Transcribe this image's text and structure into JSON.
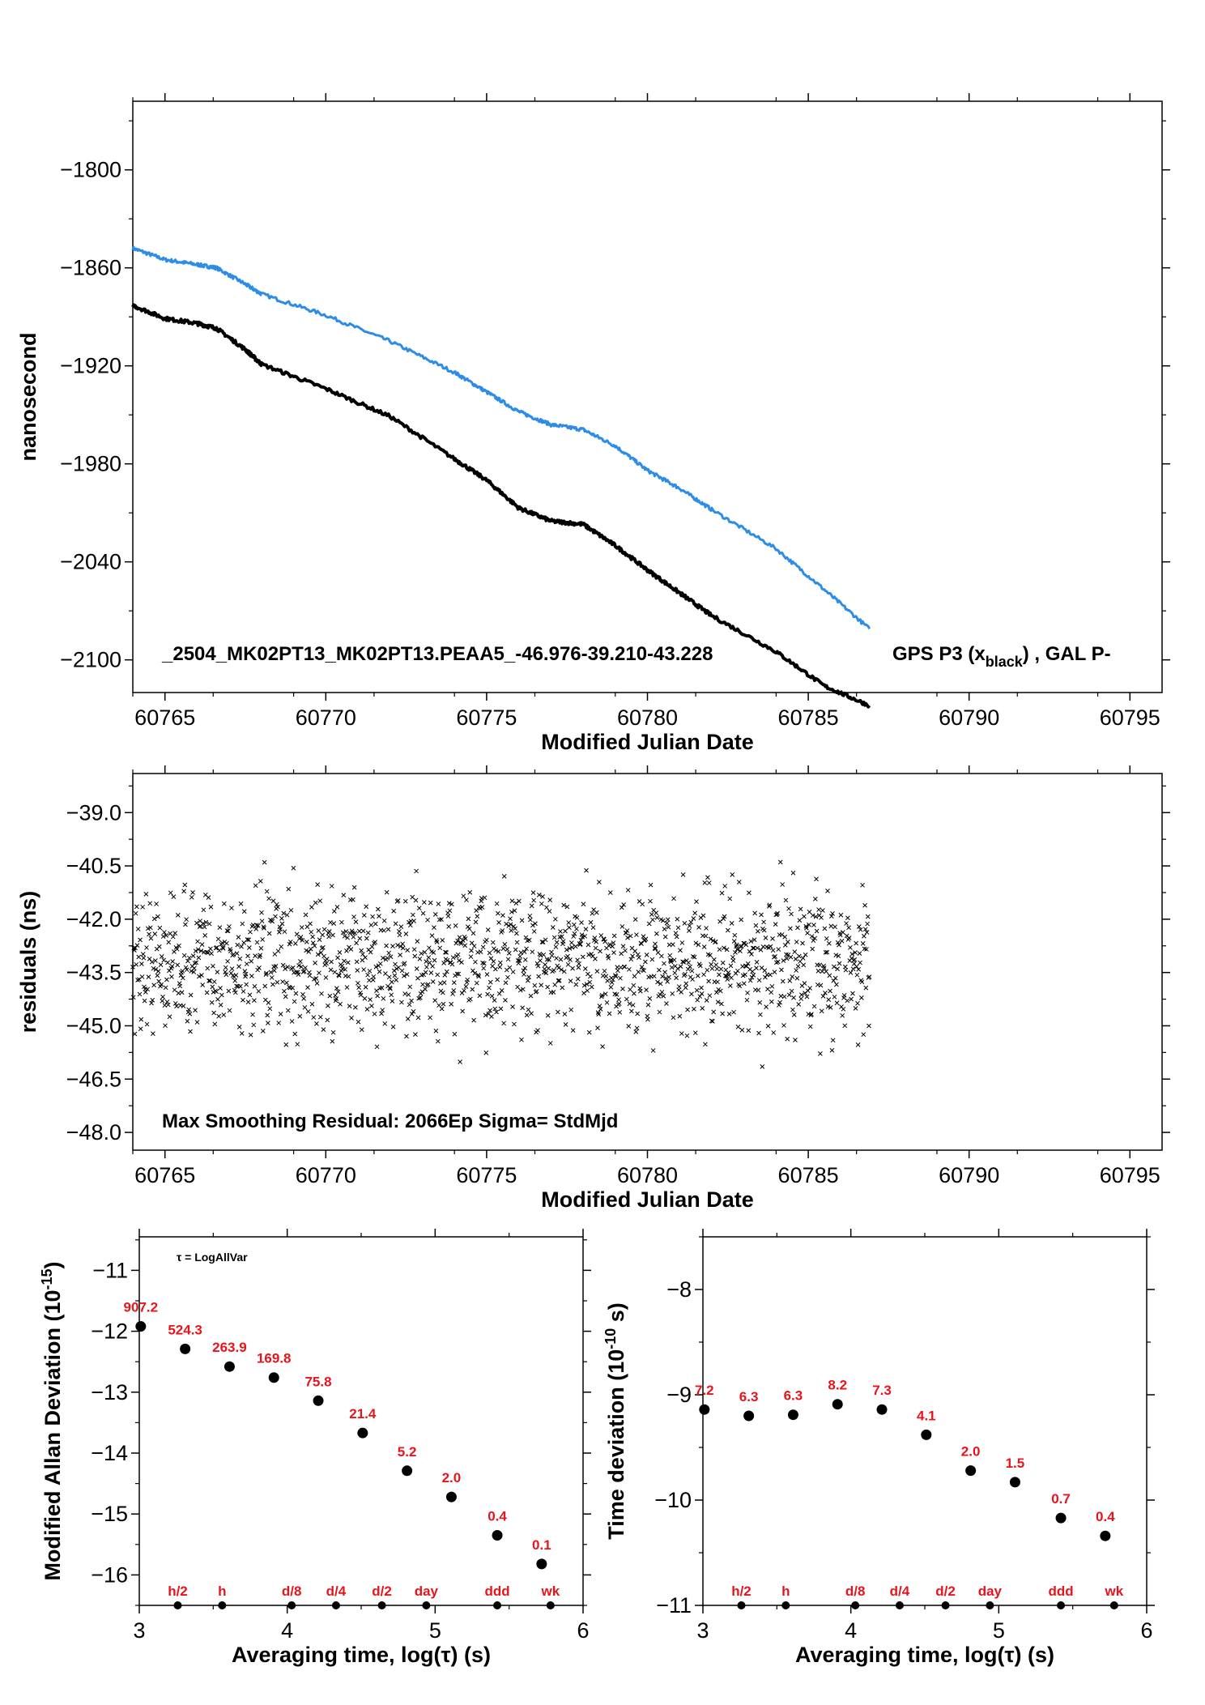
{
  "chart_data": [
    {
      "type": "line",
      "xlabel": "Modified Julian Date",
      "ylabel": "nanosecond",
      "xlim": [
        60764,
        60796
      ],
      "ylim": [
        -2120,
        -1758
      ],
      "xticks": [
        60765,
        60770,
        60775,
        60780,
        60785,
        60790,
        60795
      ],
      "yticks": [
        -1800,
        -1860,
        -1920,
        -1980,
        -2040,
        -2100
      ],
      "annotation": "_2504_MK02PT13_MK02PT13.PEAA5_-46.976-39.210-43.228",
      "legend_text": "GPS P3 (x",
      "legend_sub": "black",
      "legend_tail": ") ,  GAL P-",
      "series": [
        {
          "name": "GAL",
          "color": "#2d8de6",
          "x": [
            60764,
            60765,
            60766,
            60766.6,
            60767.5,
            60768,
            60770,
            60772,
            60774,
            60775,
            60776,
            60777,
            60778,
            60779,
            60780,
            60781,
            60782,
            60784,
            60785.5,
            60786.9
          ],
          "y": [
            -1848,
            -1855,
            -1858,
            -1860,
            -1870,
            -1876,
            -1889,
            -1905,
            -1924,
            -1936,
            -1948,
            -1956,
            -1959,
            -1969,
            -1984,
            -1995,
            -2008,
            -2032,
            -2057,
            -2081
          ]
        },
        {
          "name": "GPS",
          "color": "#000000",
          "x": [
            60764,
            60765,
            60766,
            60766.6,
            60767.5,
            60768,
            60770,
            60772,
            60774,
            60775,
            60776,
            60777,
            60778,
            60779,
            60780,
            60781,
            60782,
            60784,
            60785.5,
            60786.9
          ],
          "y": [
            -1883,
            -1891,
            -1894,
            -1897,
            -1910,
            -1919,
            -1934,
            -1951,
            -1977,
            -1990,
            -2007,
            -2015,
            -2017,
            -2030,
            -2045,
            -2059,
            -2073,
            -2095,
            -2116,
            -2128
          ]
        }
      ]
    },
    {
      "type": "scatter",
      "xlabel": "Modified Julian Date",
      "ylabel": "residuals (ns)",
      "xlim": [
        60764,
        60796
      ],
      "ylim": [
        -48.5,
        -37.9
      ],
      "xticks": [
        60765,
        60770,
        60775,
        60780,
        60785,
        60790,
        60795
      ],
      "yticks": [
        -39.0,
        -40.5,
        -42.0,
        -43.5,
        -45.0,
        -46.5,
        -48.0
      ],
      "annotation": "Max Smoothing Residual: 2066Ep  Sigma= StdMjd",
      "scatter_center": -43.2,
      "scatter_spread": 1.0,
      "x_range": [
        60764,
        60786.9
      ],
      "n_points": 1500
    },
    {
      "type": "scatter",
      "xlabel": "Averaging time, log(τ) (s)",
      "ylabel": "Modified Allan Deviation (10",
      "ylabel_sup": "-15",
      "ylabel_tail": ")",
      "xlim": [
        3,
        6
      ],
      "ylim": [
        -16.5,
        -10.45
      ],
      "xticks": [
        3,
        4,
        5,
        6
      ],
      "yticks": [
        -11,
        -12,
        -13,
        -14,
        -15,
        -16
      ],
      "legend": "τ = LogAllVar",
      "x": [
        3.01,
        3.31,
        3.61,
        3.91,
        4.21,
        4.51,
        4.81,
        5.11,
        5.42,
        5.72
      ],
      "y": [
        -11.92,
        -12.29,
        -12.58,
        -12.76,
        -13.14,
        -13.67,
        -14.29,
        -14.72,
        -15.35,
        -15.82
      ],
      "point_labels": [
        "907.2",
        "524.3",
        "263.9",
        "169.8",
        "75.8",
        "21.4",
        "5.2",
        "2.0",
        "0.4",
        "0.1"
      ],
      "time_markers": {
        "labels": [
          "h/2",
          "h",
          "d/8",
          "d/4",
          "d/2",
          "day",
          "ddd",
          "wk"
        ],
        "x": [
          3.26,
          3.56,
          4.03,
          4.33,
          4.64,
          4.94,
          5.42,
          5.78
        ]
      }
    },
    {
      "type": "scatter",
      "xlabel": "Averaging time, log(τ) (s)",
      "ylabel": "Time deviation (10",
      "ylabel_sup": "-10",
      "ylabel_tail": " s)",
      "xlim": [
        3,
        6
      ],
      "ylim": [
        -11,
        -7.5
      ],
      "xticks": [
        3,
        4,
        5,
        6
      ],
      "yticks": [
        -8,
        -9,
        -10,
        -11
      ],
      "x": [
        3.01,
        3.31,
        3.61,
        3.91,
        4.21,
        4.51,
        4.81,
        5.11,
        5.42,
        5.72
      ],
      "y": [
        -9.14,
        -9.2,
        -9.19,
        -9.09,
        -9.14,
        -9.38,
        -9.72,
        -9.83,
        -10.17,
        -10.34
      ],
      "point_labels": [
        "7.2",
        "6.3",
        "6.3",
        "8.2",
        "7.3",
        "4.1",
        "2.0",
        "1.5",
        "0.7",
        "0.4"
      ],
      "time_markers": {
        "labels": [
          "h/2",
          "h",
          "d/8",
          "d/4",
          "d/2",
          "day",
          "ddd",
          "wk"
        ],
        "x": [
          3.26,
          3.56,
          4.03,
          4.33,
          4.64,
          4.94,
          5.42,
          5.78
        ]
      }
    }
  ]
}
